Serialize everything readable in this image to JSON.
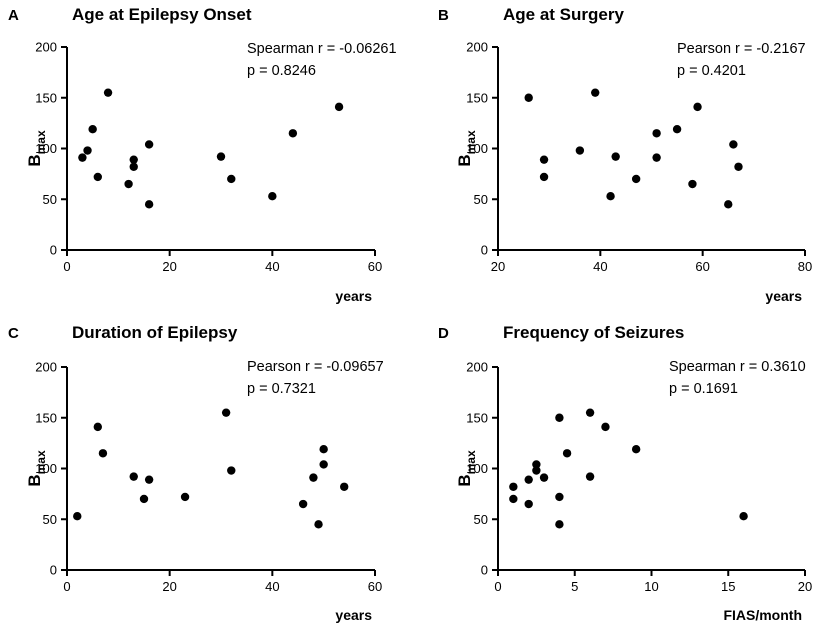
{
  "chart_data": [
    {
      "type": "scatter",
      "letter": "A",
      "title": "Age at Epilepsy Onset",
      "xlabel": "years",
      "ylabel": "B",
      "ylabel_sub": "max",
      "stat_line1": "Spearman r = -0.06261",
      "stat_line2": "p = 0.8246",
      "xlim": [
        0,
        60
      ],
      "ylim": [
        0,
        200
      ],
      "xticks": [
        0,
        20,
        40,
        60
      ],
      "yticks": [
        0,
        50,
        100,
        150,
        200
      ],
      "x": [
        3,
        4,
        5,
        6,
        8,
        12,
        13,
        13,
        16,
        16,
        30,
        32,
        40,
        44,
        53
      ],
      "y": [
        91,
        98,
        119,
        72,
        155,
        65,
        89,
        82,
        104,
        45,
        92,
        70,
        53,
        115,
        141
      ]
    },
    {
      "type": "scatter",
      "letter": "B",
      "title": "Age at Surgery",
      "xlabel": "years",
      "ylabel": "B",
      "ylabel_sub": "max",
      "stat_line1": "Pearson r = -0.2167",
      "stat_line2": "p = 0.4201",
      "xlim": [
        20,
        80
      ],
      "ylim": [
        0,
        200
      ],
      "xticks": [
        20,
        40,
        60,
        80
      ],
      "yticks": [
        0,
        50,
        100,
        150,
        200
      ],
      "x": [
        26,
        29,
        29,
        36,
        39,
        42,
        43,
        47,
        51,
        51,
        55,
        58,
        59,
        65,
        66,
        67
      ],
      "y": [
        150,
        89,
        72,
        98,
        155,
        53,
        92,
        70,
        115,
        91,
        119,
        65,
        141,
        45,
        104,
        82
      ]
    },
    {
      "type": "scatter",
      "letter": "C",
      "title": "Duration of Epilepsy",
      "xlabel": "years",
      "ylabel": "B",
      "ylabel_sub": "max",
      "stat_line1": "Pearson r = -0.09657",
      "stat_line2": "p = 0.7321",
      "xlim": [
        0,
        60
      ],
      "ylim": [
        0,
        200
      ],
      "xticks": [
        0,
        20,
        40,
        60
      ],
      "yticks": [
        0,
        50,
        100,
        150,
        200
      ],
      "x": [
        2,
        6,
        7,
        13,
        15,
        16,
        23,
        31,
        32,
        46,
        48,
        49,
        50,
        50,
        54
      ],
      "y": [
        53,
        141,
        115,
        92,
        70,
        89,
        72,
        155,
        98,
        65,
        91,
        45,
        119,
        104,
        82
      ]
    },
    {
      "type": "scatter",
      "letter": "D",
      "title": "Frequency of Seizures",
      "xlabel": "FIAS/month",
      "ylabel": "B",
      "ylabel_sub": "max",
      "stat_line1": "Spearman r = 0.3610",
      "stat_line2": "p = 0.1691",
      "xlim": [
        0,
        20
      ],
      "ylim": [
        0,
        200
      ],
      "xticks": [
        0,
        5,
        10,
        15,
        20
      ],
      "yticks": [
        0,
        50,
        100,
        150,
        200
      ],
      "x": [
        1,
        1,
        2,
        2,
        2.5,
        2.5,
        3,
        4,
        4,
        4,
        4.5,
        6,
        6,
        7,
        9,
        16
      ],
      "y": [
        82,
        70,
        89,
        65,
        104,
        98,
        91,
        150,
        72,
        45,
        115,
        155,
        92,
        141,
        119,
        53
      ]
    }
  ]
}
